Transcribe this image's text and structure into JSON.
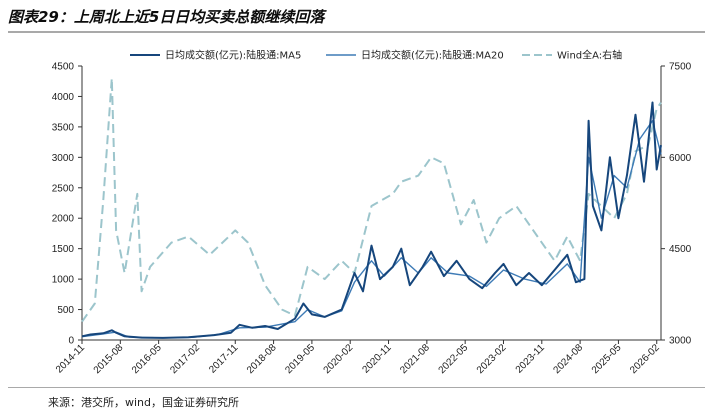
{
  "figure": {
    "title": "图表29：上周北上近5日日均买卖总额继续回落",
    "source": "来源：港交所，wind，国金证券研究所"
  },
  "colors": {
    "ma5": "#16467c",
    "ma20": "#3e7bb6",
    "wind_a": "#9cc5cc",
    "title_rule": "#a9a9a9"
  },
  "chart_data": {
    "type": "line",
    "title": "",
    "xlabel": "",
    "ylabel": "",
    "x_ticks": [
      "2014-11",
      "2015-08",
      "2016-05",
      "2017-02",
      "2017-11",
      "2018-08",
      "2019-05",
      "2020-02",
      "2020-11",
      "2021-08",
      "2022-05",
      "2023-02",
      "2023-11",
      "2024-08",
      "2025-05",
      "2026-02"
    ],
    "x_range": [
      "2014-11",
      "2026-03"
    ],
    "y_left": {
      "min": 0,
      "max": 4500,
      "ticks": [
        0,
        500,
        1000,
        1500,
        2000,
        2500,
        3000,
        3500,
        4000,
        4500
      ]
    },
    "y_right": {
      "min": 3000,
      "max": 7500,
      "ticks": [
        3000,
        4500,
        6000,
        7500
      ]
    },
    "grid": false,
    "legend_position": "top",
    "series": [
      {
        "name": "日均成交额(亿元):陆股通:MA5",
        "axis": "left",
        "style": "solid-thick",
        "points": [
          [
            "2014-11",
            60
          ],
          [
            "2015-01",
            90
          ],
          [
            "2015-04",
            110
          ],
          [
            "2015-06",
            160
          ],
          [
            "2015-07",
            120
          ],
          [
            "2015-09",
            60
          ],
          [
            "2016-01",
            40
          ],
          [
            "2016-06",
            35
          ],
          [
            "2016-12",
            45
          ],
          [
            "2017-06",
            80
          ],
          [
            "2017-10",
            120
          ],
          [
            "2017-12",
            250
          ],
          [
            "2018-03",
            200
          ],
          [
            "2018-06",
            230
          ],
          [
            "2018-09",
            180
          ],
          [
            "2019-01",
            350
          ],
          [
            "2019-03",
            600
          ],
          [
            "2019-05",
            420
          ],
          [
            "2019-08",
            380
          ],
          [
            "2019-12",
            500
          ],
          [
            "2020-02",
            900
          ],
          [
            "2020-03",
            1100
          ],
          [
            "2020-05",
            800
          ],
          [
            "2020-07",
            1550
          ],
          [
            "2020-09",
            1000
          ],
          [
            "2020-12",
            1200
          ],
          [
            "2021-02",
            1500
          ],
          [
            "2021-04",
            900
          ],
          [
            "2021-07",
            1200
          ],
          [
            "2021-09",
            1450
          ],
          [
            "2021-12",
            1050
          ],
          [
            "2022-03",
            1300
          ],
          [
            "2022-06",
            1000
          ],
          [
            "2022-09",
            850
          ],
          [
            "2022-12",
            1100
          ],
          [
            "2023-02",
            1250
          ],
          [
            "2023-05",
            900
          ],
          [
            "2023-08",
            1100
          ],
          [
            "2023-11",
            900
          ],
          [
            "2024-02",
            1150
          ],
          [
            "2024-05",
            1400
          ],
          [
            "2024-07",
            950
          ],
          [
            "2024-09",
            1000
          ],
          [
            "2024-10",
            3600
          ],
          [
            "2024-11",
            2200
          ],
          [
            "2025-01",
            1800
          ],
          [
            "2025-03",
            3000
          ],
          [
            "2025-05",
            2000
          ],
          [
            "2025-07",
            2700
          ],
          [
            "2025-09",
            3700
          ],
          [
            "2025-11",
            2600
          ],
          [
            "2026-01",
            3900
          ],
          [
            "2026-02",
            2800
          ],
          [
            "2026-03",
            3200
          ]
        ]
      },
      {
        "name": "日均成交额(亿元):陆股通:MA20",
        "axis": "left",
        "style": "solid",
        "points": [
          [
            "2014-11",
            55
          ],
          [
            "2015-04",
            100
          ],
          [
            "2015-07",
            130
          ],
          [
            "2015-10",
            50
          ],
          [
            "2016-06",
            35
          ],
          [
            "2017-01",
            45
          ],
          [
            "2017-07",
            90
          ],
          [
            "2017-12",
            200
          ],
          [
            "2018-06",
            210
          ],
          [
            "2019-01",
            300
          ],
          [
            "2019-04",
            500
          ],
          [
            "2019-08",
            380
          ],
          [
            "2019-12",
            480
          ],
          [
            "2020-03",
            950
          ],
          [
            "2020-07",
            1300
          ],
          [
            "2020-10",
            1050
          ],
          [
            "2021-02",
            1350
          ],
          [
            "2021-06",
            1100
          ],
          [
            "2021-09",
            1350
          ],
          [
            "2022-01",
            1100
          ],
          [
            "2022-06",
            1050
          ],
          [
            "2022-10",
            880
          ],
          [
            "2023-02",
            1150
          ],
          [
            "2023-07",
            1000
          ],
          [
            "2023-12",
            920
          ],
          [
            "2024-05",
            1250
          ],
          [
            "2024-08",
            950
          ],
          [
            "2024-10",
            3000
          ],
          [
            "2025-01",
            2000
          ],
          [
            "2025-04",
            2700
          ],
          [
            "2025-07",
            2500
          ],
          [
            "2025-10",
            3300
          ],
          [
            "2026-01",
            3600
          ],
          [
            "2026-03",
            3050
          ]
        ]
      },
      {
        "name": "Wind全A:右轴",
        "axis": "right",
        "style": "dashed",
        "points": [
          [
            "2014-11",
            3300
          ],
          [
            "2015-02",
            3600
          ],
          [
            "2015-04",
            5300
          ],
          [
            "2015-06",
            7300
          ],
          [
            "2015-07",
            4800
          ],
          [
            "2015-09",
            4100
          ],
          [
            "2015-12",
            5400
          ],
          [
            "2016-01",
            3800
          ],
          [
            "2016-03",
            4200
          ],
          [
            "2016-08",
            4600
          ],
          [
            "2016-12",
            4700
          ],
          [
            "2017-05",
            4400
          ],
          [
            "2017-11",
            4800
          ],
          [
            "2018-02",
            4600
          ],
          [
            "2018-06",
            3900
          ],
          [
            "2018-10",
            3500
          ],
          [
            "2019-01",
            3400
          ],
          [
            "2019-04",
            4200
          ],
          [
            "2019-08",
            4000
          ],
          [
            "2019-12",
            4300
          ],
          [
            "2020-03",
            4100
          ],
          [
            "2020-07",
            5200
          ],
          [
            "2020-12",
            5400
          ],
          [
            "2021-02",
            5600
          ],
          [
            "2021-06",
            5700
          ],
          [
            "2021-09",
            6000
          ],
          [
            "2021-12",
            5900
          ],
          [
            "2022-04",
            4900
          ],
          [
            "2022-07",
            5300
          ],
          [
            "2022-10",
            4600
          ],
          [
            "2023-01",
            5000
          ],
          [
            "2023-05",
            5200
          ],
          [
            "2023-10",
            4700
          ],
          [
            "2024-02",
            4300
          ],
          [
            "2024-05",
            4700
          ],
          [
            "2024-08",
            4300
          ],
          [
            "2024-10",
            5400
          ],
          [
            "2025-01",
            5200
          ],
          [
            "2025-04",
            5000
          ],
          [
            "2025-07",
            5400
          ],
          [
            "2025-09",
            6100
          ],
          [
            "2025-12",
            6200
          ],
          [
            "2026-02",
            6800
          ],
          [
            "2026-03",
            6900
          ]
        ]
      }
    ]
  }
}
